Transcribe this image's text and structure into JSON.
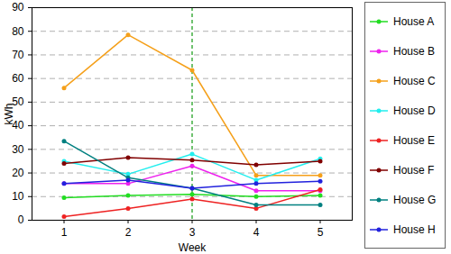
{
  "chart_data": {
    "type": "line",
    "x_label": "Week",
    "y_label": "kWh",
    "x": [
      1,
      2,
      3,
      4,
      5
    ],
    "xlim": [
      0.5,
      5.5
    ],
    "xticks": [
      1,
      2,
      3,
      4,
      5
    ],
    "ylim": [
      0,
      90
    ],
    "yticks": [
      0,
      10,
      20,
      30,
      40,
      50,
      60,
      70,
      80,
      90
    ],
    "grid": true,
    "legend": "right",
    "marker": "circle",
    "vline": 3,
    "series": [
      {
        "name": "House A",
        "color": "#22dd22",
        "values": [
          9.5,
          10.5,
          11,
          10,
          10.5
        ]
      },
      {
        "name": "House B",
        "color": "#ee22ee",
        "values": [
          15.5,
          15.5,
          23,
          12.5,
          12.5
        ]
      },
      {
        "name": "House C",
        "color": "#f5a01a",
        "values": [
          56,
          78.5,
          63.5,
          19,
          19
        ]
      },
      {
        "name": "House D",
        "color": "#22eeee",
        "values": [
          25,
          19.5,
          28,
          17,
          26
        ]
      },
      {
        "name": "House E",
        "color": "#ee2222",
        "values": [
          1.5,
          5,
          9,
          5,
          13
        ]
      },
      {
        "name": "House F",
        "color": "#800000",
        "values": [
          24,
          26.5,
          25.5,
          23.5,
          25
        ]
      },
      {
        "name": "House G",
        "color": "#008080",
        "values": [
          33.5,
          18,
          13.5,
          6.5,
          6.5
        ]
      },
      {
        "name": "House H",
        "color": "#2222dd",
        "values": [
          15.5,
          17,
          13.5,
          15.5,
          16.5
        ]
      }
    ]
  }
}
